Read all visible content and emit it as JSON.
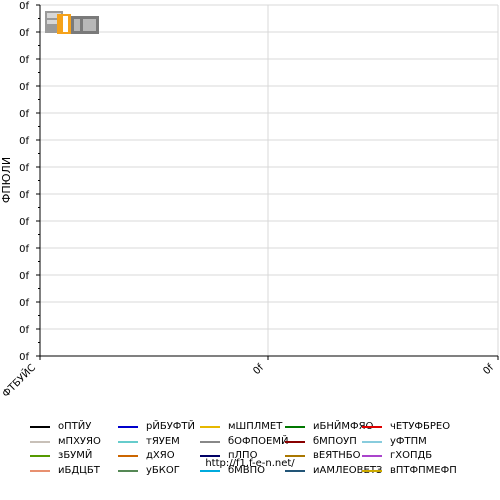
{
  "chart_data": {
    "type": "line",
    "ylabel": "ФПЮЛИ",
    "y_tick_labels": [
      "0f",
      "0f",
      "0f",
      "0f",
      "0f",
      "0f",
      "0f",
      "0f",
      "0f",
      "0f",
      "0f",
      "0f",
      "0f",
      "0f"
    ],
    "x_tick_labels": [
      "ФТБУЙС",
      "0f",
      "0f"
    ],
    "grid": true,
    "series": [
      {
        "name": "оПТЙУ",
        "color": "#000000",
        "values": []
      },
      {
        "name": "рЙБУФТЙ",
        "color": "#0000cc",
        "values": []
      },
      {
        "name": "мШПЛМЕТ",
        "color": "#e6b800",
        "values": []
      },
      {
        "name": "иБНЙМФЯО",
        "color": "#007700",
        "values": []
      },
      {
        "name": "чЕТУФБРЕО",
        "color": "#dd0000",
        "values": []
      },
      {
        "name": "мПХУЯО",
        "color": "#c8c0b8",
        "values": []
      },
      {
        "name": "тЯУЕМ",
        "color": "#66cccc",
        "values": []
      },
      {
        "name": "бОФПОЕМЙ",
        "color": "#888888",
        "values": []
      },
      {
        "name": "бМПОУП",
        "color": "#880000",
        "values": []
      },
      {
        "name": "уФТПМ",
        "color": "#88ccdd",
        "values": []
      },
      {
        "name": "зБУМЙ",
        "color": "#559900",
        "values": []
      },
      {
        "name": "дХЯО",
        "color": "#cc6600",
        "values": []
      },
      {
        "name": "пЛПО",
        "color": "#000066",
        "values": []
      },
      {
        "name": "вЕЯТНБО",
        "color": "#aa7700",
        "values": []
      },
      {
        "name": "гХОПДБ",
        "color": "#aa44cc",
        "values": []
      },
      {
        "name": "иБДЦБТ",
        "color": "#e89070",
        "values": []
      },
      {
        "name": "уБКОГ",
        "color": "#558855",
        "values": []
      },
      {
        "name": "бМВПО",
        "color": "#00aadd",
        "values": []
      },
      {
        "name": "иАМЛЕОВЕТЗ",
        "color": "#225577",
        "values": []
      },
      {
        "name": "вПТФПМЕФП",
        "color": "#ccaa00",
        "values": []
      }
    ]
  },
  "footer": {
    "url": "http://f1.f-e-n.net/"
  },
  "logo": {
    "text": "F1 FEN"
  }
}
